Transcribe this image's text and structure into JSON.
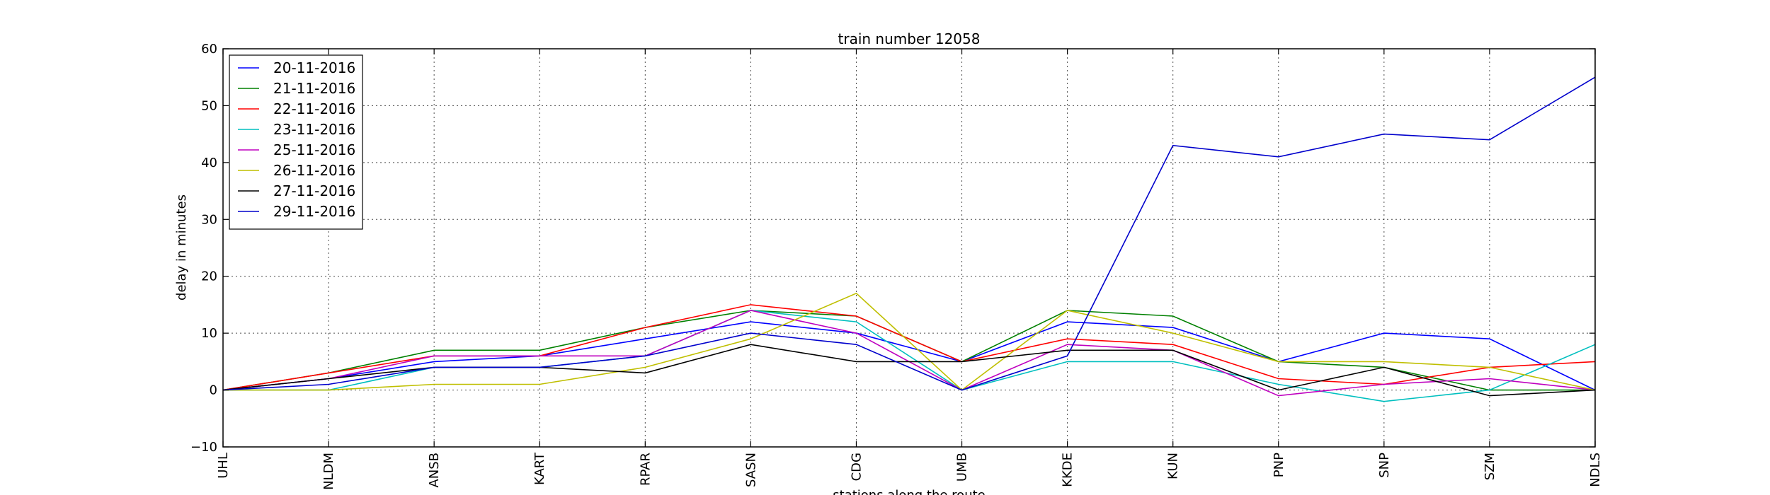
{
  "chart_data": {
    "type": "line",
    "title": "train number 12058",
    "xlabel": "stations along the route",
    "ylabel": "delay in minutes",
    "ylim": [
      -10,
      60
    ],
    "yticks": [
      "−10",
      "0",
      "10",
      "20",
      "30",
      "40",
      "50",
      "60"
    ],
    "grid": true,
    "legend_position": "top-left",
    "categories": [
      "UHL",
      "NLDM",
      "ANSB",
      "KART",
      "RPAR",
      "SASN",
      "CDG",
      "UMB",
      "KKDE",
      "KUN",
      "PNP",
      "SNP",
      "SZM",
      "NDLS"
    ],
    "series": [
      {
        "name": "20-11-2016",
        "color": "#0000ff",
        "values": [
          0,
          2,
          5,
          6,
          9,
          12,
          10,
          5,
          12,
          11,
          5,
          10,
          9,
          0
        ]
      },
      {
        "name": "21-11-2016",
        "color": "#008000",
        "values": [
          0,
          3,
          7,
          7,
          11,
          14,
          13,
          5,
          14,
          13,
          5,
          4,
          0,
          0
        ]
      },
      {
        "name": "22-11-2016",
        "color": "#ff0000",
        "values": [
          0,
          3,
          6,
          6,
          11,
          15,
          13,
          5,
          9,
          8,
          2,
          1,
          4,
          5
        ]
      },
      {
        "name": "23-11-2016",
        "color": "#00bfbf",
        "values": [
          0,
          0,
          4,
          4,
          6,
          14,
          12,
          0,
          5,
          5,
          1,
          -2,
          0,
          8
        ]
      },
      {
        "name": "25-11-2016",
        "color": "#bf00bf",
        "values": [
          0,
          2,
          6,
          6,
          6,
          14,
          10,
          0,
          8,
          7,
          -1,
          1,
          2,
          0
        ]
      },
      {
        "name": "26-11-2016",
        "color": "#bfbf00",
        "values": [
          0,
          0,
          1,
          1,
          4,
          9,
          17,
          0,
          14,
          10,
          5,
          5,
          4,
          0
        ]
      },
      {
        "name": "27-11-2016",
        "color": "#000000",
        "values": [
          0,
          2,
          4,
          4,
          3,
          8,
          5,
          5,
          7,
          7,
          0,
          4,
          -1,
          0
        ]
      },
      {
        "name": "29-11-2016",
        "color": "#0000cc",
        "values": [
          0,
          1,
          4,
          4,
          6,
          10,
          8,
          0,
          6,
          43,
          41,
          45,
          44,
          55
        ]
      }
    ]
  }
}
